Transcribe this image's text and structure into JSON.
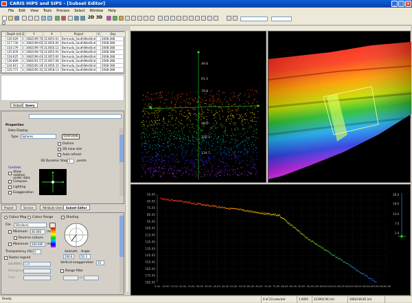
{
  "window": {
    "title": "CARIS HIPS and SIPS - [Subset Editor]"
  },
  "menu": [
    "File",
    "Edit",
    "View",
    "Tools",
    "Process",
    "Select",
    "Window",
    "Help"
  ],
  "toolbar": {
    "mode_2d": "2D",
    "mode_3d": "3D"
  },
  "table": {
    "headers": [
      "",
      "Depth (m)",
      "Q",
      "Y",
      "X",
      "Project",
      "V",
      "Day"
    ],
    "rows": [
      [
        "✓",
        "126.929",
        "3",
        "A",
        "3082199.70",
        "313055.61",
        "Bermuda_SouthWestEnd",
        "2008-288"
      ],
      [
        "✓",
        "117.730",
        "3",
        "A",
        "3082199.65",
        "313056.00",
        "Bermuda_SouthWestEnd",
        "2008-288"
      ],
      [
        "✓",
        "118.179",
        "3",
        "A",
        "3082199.74",
        "313056.12",
        "Bermuda_SouthWestEnd",
        "2008-288"
      ],
      [
        "✓",
        "125.876",
        "3",
        "A",
        "3082199.74",
        "313055.91",
        "Bermuda_SouthWestEnd",
        "2008-288"
      ],
      [
        "✓",
        "118.625",
        "3",
        "A",
        "3082199.43",
        "313055.60",
        "Bermuda_SouthWestEnd",
        "2008-288"
      ],
      [
        "✓",
        "126.809",
        "3",
        "A",
        "3082201.57",
        "313057.08",
        "Bermuda_SouthWestEnd",
        "2008-288"
      ],
      [
        "✓",
        "124.811",
        "3",
        "A",
        "3082200.19",
        "313056.33",
        "Bermuda_SouthWestEnd",
        "2008-288"
      ],
      [
        "✓",
        "125.771",
        "3",
        "A",
        "3082200.31",
        "313058.13",
        "Bermuda_SouthWestEnd",
        "2008-288"
      ]
    ]
  },
  "query_tabs": {
    "output": "Output",
    "query": "Query"
  },
  "properties": {
    "heading": "Properties",
    "data_display": "Data Display",
    "type_label": "Type",
    "type_value": "Spheres",
    "overview_button": "Overview",
    "outline": "Outline",
    "view_size_2d": "2D view size",
    "auto_refresh": "Auto refresh",
    "dynamic_step_label": "3D Dynamic Step",
    "dynamic_step_value": "1",
    "dynamic_step_unit": "points",
    "controls": "Controls",
    "allow_rotation": "Allow rotation under data",
    "compass": "Compass",
    "lighting": "Lighting",
    "exaggeration": "Exaggeration"
  },
  "bottom_tabs": [
    "Project",
    "Service",
    "Attribute Users",
    "Subset Editor"
  ],
  "color_panel": {
    "colour_map": "Colour Map",
    "colour_range": "Colour Range",
    "file_label": "File",
    "file_value": "10colours",
    "minimum_label": "Minimum",
    "minimum_value": "40.000",
    "reverse_colours": "Reverse colours",
    "maximum_label": "Maximum",
    "maximum_value": "200.000",
    "unit": "(m)",
    "transparency_label": "Transparency (%)",
    "transparency_value": "0",
    "raster_legend": "Raster legend",
    "location_label": "Location",
    "location_value": "Left",
    "background_label": "Background",
    "font_label": "Font",
    "shading": "Shading",
    "azimuth_label": "Azimuth",
    "azimuth_value": "206.6",
    "angle_label": "Angle",
    "angle_value": "50.3",
    "vertical_exaggeration_label": "Vertical exaggeration",
    "vertical_exaggeration_value": "10",
    "range_filter": "Range filter",
    "to_label": "to"
  },
  "view3d_ticks": [
    "49.8",
    "61.3",
    "79.8",
    "98.2",
    "120.1",
    "134.7"
  ],
  "profile": {
    "yticks": [
      "55.45",
      "65.45",
      "75.45",
      "85.45",
      "95.45",
      "105.45",
      "115.45",
      "125.45",
      "135.45",
      "145.45",
      "155.45",
      "165.45",
      "175.45",
      "185.45"
    ],
    "xticks": [
      "5.00",
      "10.00",
      "15.00",
      "20.00",
      "25.00",
      "30.00",
      "35.00",
      "40.00",
      "45.00",
      "50.00",
      "55.00",
      "60.00",
      "65.00",
      "70.00",
      "75.00",
      "80.00",
      "85.00",
      "90.00",
      "95.00",
      "100.00",
      "105.00",
      "110.00",
      "115.00",
      "120.00",
      "125.00",
      "130.00",
      "135.00",
      "140.00"
    ],
    "scale_labels": [
      "26.0",
      "19.0",
      "13.0",
      "7.0",
      "1.9"
    ]
  },
  "status": {
    "left": "Ready",
    "selected": "0 of 23 selected",
    "scale": "1.0005",
    "x_coord": "313002.96 (m)",
    "y_coord": "3082238.85 (m)"
  },
  "colors": {
    "titlebar": "#0842a8",
    "panel": "#d4d0c8",
    "toolbar": "#ece9d8"
  }
}
